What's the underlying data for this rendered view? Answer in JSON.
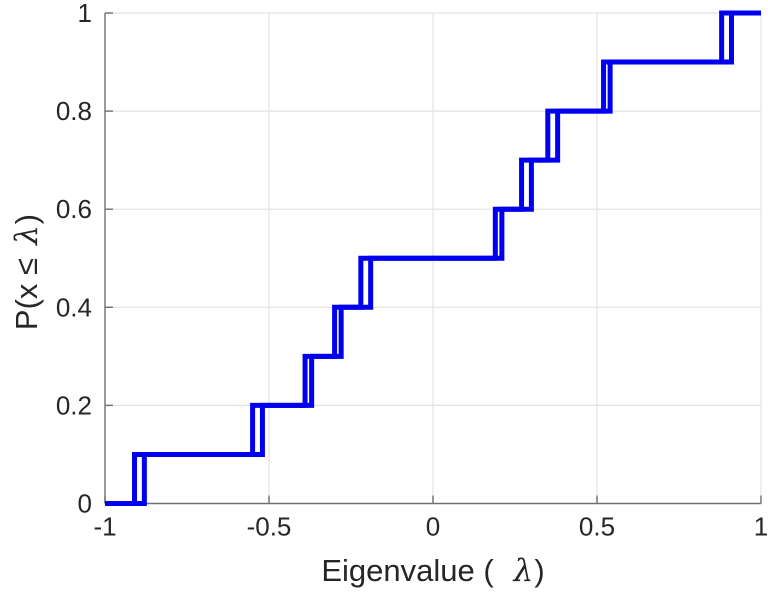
{
  "chart_data": {
    "type": "line",
    "variant": "empirical-cdf-stairs",
    "title": "",
    "xlabel": "Eigenvalue ( λ)",
    "ylabel": "P(x ≤ λ)",
    "xlabel_parts": [
      "Eigenvalue (",
      "λ",
      ")"
    ],
    "ylabel_parts": [
      "P(x ≤",
      "λ",
      ")"
    ],
    "xlim": [
      -1,
      1
    ],
    "ylim": [
      0,
      1
    ],
    "x_ticks": [
      -1,
      -0.5,
      0,
      0.5,
      1
    ],
    "x_tick_labels": [
      "-1",
      "-0.5",
      "0",
      "0.5",
      "1"
    ],
    "y_ticks": [
      0,
      0.2,
      0.4,
      0.6,
      0.8,
      1
    ],
    "y_tick_labels": [
      "0",
      "0.2",
      "0.4",
      "0.6",
      "0.8",
      "1"
    ],
    "grid": true,
    "legend": null,
    "series": [
      {
        "name": "ecdf-curve-1",
        "color": "#0000EE",
        "line_width": 5,
        "y_step": 0.1,
        "x_jumps": [
          -0.91,
          -0.55,
          -0.39,
          -0.3,
          -0.22,
          0.19,
          0.27,
          0.35,
          0.52,
          0.88
        ]
      },
      {
        "name": "ecdf-curve-2",
        "color": "#0000EE",
        "line_width": 5,
        "y_step": 0.1,
        "x_jumps": [
          -0.88,
          -0.52,
          -0.37,
          -0.28,
          -0.19,
          0.21,
          0.3,
          0.38,
          0.54,
          0.91
        ]
      }
    ],
    "colors": {
      "line": "#0000EE",
      "axis": "#707070",
      "tick_label": "#262626",
      "grid": "#E2E2E2",
      "background": "#FFFFFF"
    }
  }
}
